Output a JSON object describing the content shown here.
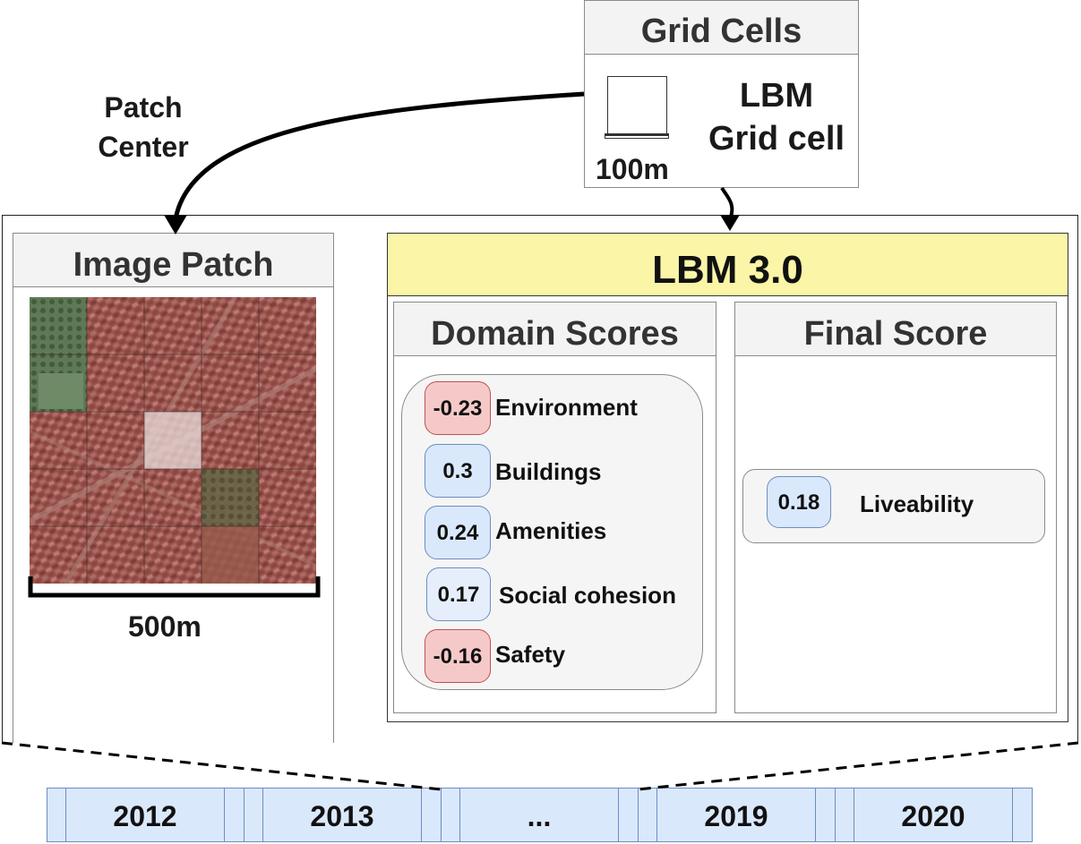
{
  "annotations": {
    "patch_center": "Patch\nCenter"
  },
  "grid_cells": {
    "title": "Grid Cells",
    "cell_label": "LBM\nGrid cell",
    "scale": "100m"
  },
  "image_patch": {
    "title": "Image Patch",
    "scale": "500m",
    "grid": {
      "rows": 5,
      "cols": 5,
      "highlight_cell": [
        2,
        2
      ]
    }
  },
  "lbm": {
    "title": "LBM 3.0",
    "domain_scores": {
      "title": "Domain Scores",
      "items": [
        {
          "score": "-0.23",
          "label": "Environment",
          "tone": "negative"
        },
        {
          "score": "0.3",
          "label": "Buildings",
          "tone": "positive"
        },
        {
          "score": "0.24",
          "label": "Amenities",
          "tone": "positive"
        },
        {
          "score": "0.17",
          "label": "Social cohesion",
          "tone": "positive-light"
        },
        {
          "score": "-0.16",
          "label": "Safety",
          "tone": "negative"
        }
      ]
    },
    "final_score": {
      "title": "Final Score",
      "score": "0.18",
      "label": "Liveability"
    }
  },
  "timeline": [
    "2012",
    "2013",
    "...",
    "2019",
    "2020"
  ],
  "colors": {
    "negative_fill": "#f6c9c9",
    "positive_fill": "#dae8fc",
    "lbm_header": "#fbf5a8",
    "timeline_fill": "#dae8fc"
  }
}
